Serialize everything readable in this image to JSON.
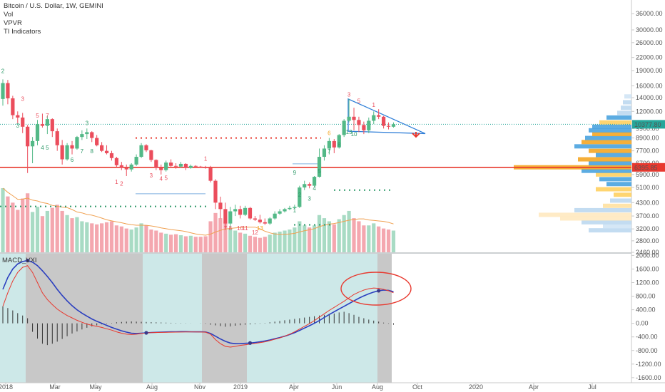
{
  "legend": {
    "symbol": "Bitcoin / U.S. Dollar, 1W, GEMINI",
    "vol": "Vol",
    "vpvr": "VPVR",
    "ti": "TI Indicators"
  },
  "macd_label": "MACD_VXI",
  "colors": {
    "up": "#53b987",
    "down": "#eb4d5c",
    "resistance": "#e8392f",
    "macd_line": "#2b3fbf",
    "signal_line": "#e8392f",
    "bg_teal": "#cde8e8",
    "bg_gray": "#c8c8c8",
    "triangle": "#2f7fd8",
    "price_badge": "#26a69a",
    "level_badge": "#e8392f"
  },
  "badges": {
    "last_price": "10377.80",
    "level": "6395.85"
  },
  "chart_data": [
    {
      "type": "candlestick",
      "title": "Bitcoin / U.S. Dollar, 1W, GEMINI",
      "scale": "log",
      "ylim": [
        2460,
        42000
      ],
      "y_ticks": [
        "36000.00",
        "30000.00",
        "26000.00",
        "22000.00",
        "19000.00",
        "16000.00",
        "14000.00",
        "12000.00",
        "9900.00",
        "8900.00",
        "7700.00",
        "6700.00",
        "5900.00",
        "5100.00",
        "4300.00",
        "3700.00",
        "3200.00",
        "2800.00",
        "2460.00"
      ],
      "x_labels": [
        "2018",
        "Mar",
        "May",
        "Aug",
        "Nov",
        "2019",
        "Apr",
        "Jun",
        "Aug",
        "Oct",
        "2020",
        "Apr",
        "Jul"
      ],
      "horizontal_levels": [
        6395.85
      ],
      "candles": [
        {
          "o": 13800,
          "h": 17200,
          "l": 12800,
          "c": 16500
        },
        {
          "o": 16500,
          "h": 17100,
          "l": 13000,
          "c": 13900
        },
        {
          "o": 13900,
          "h": 14300,
          "l": 11000,
          "c": 11500
        },
        {
          "o": 11500,
          "h": 12000,
          "l": 10500,
          "c": 11200
        },
        {
          "o": 11200,
          "h": 11800,
          "l": 9400,
          "c": 10100
        },
        {
          "o": 10100,
          "h": 10300,
          "l": 6000,
          "c": 8100
        },
        {
          "o": 8100,
          "h": 9000,
          "l": 6700,
          "c": 8600
        },
        {
          "o": 8600,
          "h": 10900,
          "l": 8200,
          "c": 10400
        },
        {
          "o": 10400,
          "h": 11700,
          "l": 10000,
          "c": 10200
        },
        {
          "o": 10200,
          "h": 11400,
          "l": 9300,
          "c": 11000
        },
        {
          "o": 11000,
          "h": 11100,
          "l": 9000,
          "c": 9600
        },
        {
          "o": 9600,
          "h": 9900,
          "l": 7700,
          "c": 8200
        },
        {
          "o": 8200,
          "h": 8700,
          "l": 6600,
          "c": 7000
        },
        {
          "o": 7000,
          "h": 8400,
          "l": 6900,
          "c": 8200
        },
        {
          "o": 8200,
          "h": 8600,
          "l": 7400,
          "c": 7900
        },
        {
          "o": 7900,
          "h": 9100,
          "l": 7800,
          "c": 9000
        },
        {
          "o": 9000,
          "h": 9700,
          "l": 8700,
          "c": 9300
        },
        {
          "o": 9300,
          "h": 9900,
          "l": 8800,
          "c": 9500
        },
        {
          "o": 9500,
          "h": 9600,
          "l": 8500,
          "c": 8900
        },
        {
          "o": 8900,
          "h": 9200,
          "l": 8100,
          "c": 8200
        },
        {
          "o": 8200,
          "h": 8500,
          "l": 7600,
          "c": 7700
        },
        {
          "o": 7700,
          "h": 8200,
          "l": 7400,
          "c": 7500
        },
        {
          "o": 7500,
          "h": 7700,
          "l": 6900,
          "c": 7100
        },
        {
          "o": 7100,
          "h": 7200,
          "l": 6400,
          "c": 6550
        },
        {
          "o": 6550,
          "h": 6800,
          "l": 6200,
          "c": 6350
        },
        {
          "o": 6350,
          "h": 6600,
          "l": 5800,
          "c": 6250
        },
        {
          "o": 6250,
          "h": 6700,
          "l": 6100,
          "c": 6600
        },
        {
          "o": 6600,
          "h": 7400,
          "l": 6500,
          "c": 7200
        },
        {
          "o": 7200,
          "h": 8400,
          "l": 7100,
          "c": 8200
        },
        {
          "o": 8200,
          "h": 8300,
          "l": 7600,
          "c": 7750
        },
        {
          "o": 7750,
          "h": 7800,
          "l": 6800,
          "c": 6950
        },
        {
          "o": 6950,
          "h": 7000,
          "l": 6200,
          "c": 6350
        },
        {
          "o": 6350,
          "h": 6600,
          "l": 5900,
          "c": 6200
        },
        {
          "o": 6200,
          "h": 6900,
          "l": 6100,
          "c": 6750
        },
        {
          "o": 6750,
          "h": 7000,
          "l": 6400,
          "c": 6500
        },
        {
          "o": 6500,
          "h": 6700,
          "l": 6300,
          "c": 6450
        },
        {
          "o": 6450,
          "h": 6800,
          "l": 6350,
          "c": 6650
        },
        {
          "o": 6650,
          "h": 6700,
          "l": 6200,
          "c": 6350
        },
        {
          "o": 6350,
          "h": 6600,
          "l": 6300,
          "c": 6500
        },
        {
          "o": 6500,
          "h": 6550,
          "l": 6350,
          "c": 6450
        },
        {
          "o": 6450,
          "h": 6500,
          "l": 6350,
          "c": 6400
        },
        {
          "o": 6400,
          "h": 6500,
          "l": 6300,
          "c": 6350
        },
        {
          "o": 6350,
          "h": 6500,
          "l": 5400,
          "c": 5500
        },
        {
          "o": 5500,
          "h": 5600,
          "l": 4000,
          "c": 4300
        },
        {
          "o": 4300,
          "h": 4600,
          "l": 3600,
          "c": 4000
        },
        {
          "o": 4000,
          "h": 4300,
          "l": 3200,
          "c": 3400
        },
        {
          "o": 3400,
          "h": 4100,
          "l": 3250,
          "c": 3900
        },
        {
          "o": 3900,
          "h": 4200,
          "l": 3700,
          "c": 4000
        },
        {
          "o": 4000,
          "h": 4150,
          "l": 3600,
          "c": 3750
        },
        {
          "o": 3750,
          "h": 4150,
          "l": 3700,
          "c": 4050
        },
        {
          "o": 4050,
          "h": 4100,
          "l": 3550,
          "c": 3600
        },
        {
          "o": 3600,
          "h": 3700,
          "l": 3500,
          "c": 3550
        },
        {
          "o": 3550,
          "h": 3750,
          "l": 3400,
          "c": 3450
        },
        {
          "o": 3450,
          "h": 3600,
          "l": 3350,
          "c": 3400
        },
        {
          "o": 3400,
          "h": 3650,
          "l": 3350,
          "c": 3600
        },
        {
          "o": 3600,
          "h": 3900,
          "l": 3550,
          "c": 3800
        },
        {
          "o": 3800,
          "h": 4000,
          "l": 3750,
          "c": 3900
        },
        {
          "o": 3900,
          "h": 4050,
          "l": 3850,
          "c": 4000
        },
        {
          "o": 4000,
          "h": 4150,
          "l": 3950,
          "c": 4050
        },
        {
          "o": 4050,
          "h": 4200,
          "l": 4000,
          "c": 4100
        },
        {
          "o": 4100,
          "h": 5200,
          "l": 4050,
          "c": 5100
        },
        {
          "o": 5100,
          "h": 5500,
          "l": 4950,
          "c": 5300
        },
        {
          "o": 5300,
          "h": 5400,
          "l": 5050,
          "c": 5200
        },
        {
          "o": 5200,
          "h": 5800,
          "l": 5150,
          "c": 5750
        },
        {
          "o": 5750,
          "h": 7900,
          "l": 5700,
          "c": 7200
        },
        {
          "o": 7200,
          "h": 8200,
          "l": 6900,
          "c": 7900
        },
        {
          "o": 7900,
          "h": 8900,
          "l": 7400,
          "c": 8600
        },
        {
          "o": 8600,
          "h": 8800,
          "l": 7500,
          "c": 8000
        },
        {
          "o": 8000,
          "h": 9300,
          "l": 7900,
          "c": 9200
        },
        {
          "o": 9200,
          "h": 11000,
          "l": 9000,
          "c": 10800
        },
        {
          "o": 10800,
          "h": 13800,
          "l": 10600,
          "c": 11300
        },
        {
          "o": 11300,
          "h": 12500,
          "l": 9700,
          "c": 10900
        },
        {
          "o": 10900,
          "h": 11300,
          "l": 9500,
          "c": 10300
        },
        {
          "o": 10300,
          "h": 10700,
          "l": 9300,
          "c": 9700
        },
        {
          "o": 9700,
          "h": 11200,
          "l": 9400,
          "c": 10800
        },
        {
          "o": 10800,
          "h": 12000,
          "l": 10400,
          "c": 11500
        },
        {
          "o": 11500,
          "h": 12300,
          "l": 11000,
          "c": 11300
        },
        {
          "o": 11300,
          "h": 11400,
          "l": 9900,
          "c": 10200
        },
        {
          "o": 10200,
          "h": 10600,
          "l": 9800,
          "c": 10100
        },
        {
          "o": 10100,
          "h": 10600,
          "l": 10000,
          "c": 10378
        }
      ],
      "volume": [
        620,
        540,
        480,
        410,
        520,
        570,
        390,
        440,
        350,
        400,
        430,
        460,
        400,
        360,
        330,
        340,
        300,
        290,
        280,
        270,
        280,
        290,
        300,
        260,
        250,
        230,
        220,
        240,
        280,
        260,
        220,
        210,
        190,
        180,
        170,
        175,
        165,
        155,
        160,
        150,
        150,
        155,
        300,
        380,
        330,
        300,
        230,
        210,
        190,
        180,
        160,
        150,
        140,
        150,
        170,
        190,
        200,
        210,
        220,
        240,
        300,
        260,
        240,
        260,
        360,
        330,
        300,
        270,
        320,
        360,
        400,
        330,
        300,
        260,
        260,
        280,
        250,
        230,
        220,
        210
      ]
    },
    {
      "type": "line",
      "title": "MACD_VXI",
      "ylim": [
        -1750,
        2050
      ],
      "y_ticks": [
        "2000.00",
        "1600.00",
        "1200.00",
        "800.00",
        "400.00",
        "0.00",
        "-400.00",
        "-800.00",
        "-1200.00",
        "-1600.00"
      ],
      "series": [
        {
          "values": [
            1000,
            1350,
            1600,
            1750,
            1820,
            1850,
            1800,
            1700,
            1550,
            1380,
            1200,
            1000,
            820,
            660,
            520,
            400,
            300,
            210,
            130,
            60,
            0,
            -60,
            -120,
            -170,
            -220,
            -260,
            -290,
            -300,
            -290,
            -280,
            -270,
            -265,
            -260,
            -255,
            -250,
            -248,
            -245,
            -245,
            -248,
            -250,
            -252,
            -255,
            -300,
            -380,
            -460,
            -530,
            -580,
            -600,
            -598,
            -590,
            -580,
            -565,
            -545,
            -520,
            -490,
            -455,
            -420,
            -380,
            -330,
            -275,
            -210,
            -140,
            -70,
            0,
            80,
            170,
            260,
            340,
            420,
            500,
            580,
            660,
            740,
            810,
            870,
            920,
            960,
            980,
            970,
            930
          ]
        },
        {
          "values": [
            500,
            900,
            1250,
            1500,
            1650,
            1700,
            1500,
            1200,
            900,
            700,
            550,
            420,
            320,
            230,
            160,
            90,
            30,
            -20,
            -60,
            -90,
            -120,
            -160,
            -200,
            -250,
            -290,
            -320,
            -330,
            -320,
            -300,
            -285,
            -275,
            -270,
            -268,
            -265,
            -262,
            -260,
            -258,
            -255,
            -255,
            -256,
            -258,
            -260,
            -320,
            -480,
            -600,
            -680,
            -700,
            -680,
            -650,
            -630,
            -610,
            -590,
            -570,
            -545,
            -510,
            -470,
            -430,
            -380,
            -320,
            -250,
            -170,
            -90,
            -10,
            80,
            180,
            280,
            380,
            470,
            560,
            650,
            750,
            850,
            920,
            980,
            1020,
            1040,
            1030,
            1000,
            960,
            900
          ]
        }
      ],
      "histogram": [
        500,
        450,
        380,
        300,
        230,
        150,
        -250,
        -450,
        -600,
        -640,
        -600,
        -540,
        -460,
        -380,
        -300,
        -240,
        -180,
        -130,
        -90,
        -60,
        -30,
        -10,
        10,
        30,
        40,
        50,
        55,
        50,
        45,
        40,
        35,
        30,
        25,
        20,
        15,
        10,
        8,
        5,
        3,
        0,
        -5,
        -10,
        -40,
        -60,
        -80,
        -100,
        -90,
        -70,
        -55,
        -40,
        -30,
        -20,
        -10,
        10,
        30,
        50,
        70,
        90,
        110,
        130,
        150,
        170,
        190,
        210,
        230,
        250,
        270,
        290,
        320,
        340,
        300,
        250,
        190,
        150,
        110,
        80,
        50,
        20,
        -10,
        -40
      ]
    }
  ]
}
